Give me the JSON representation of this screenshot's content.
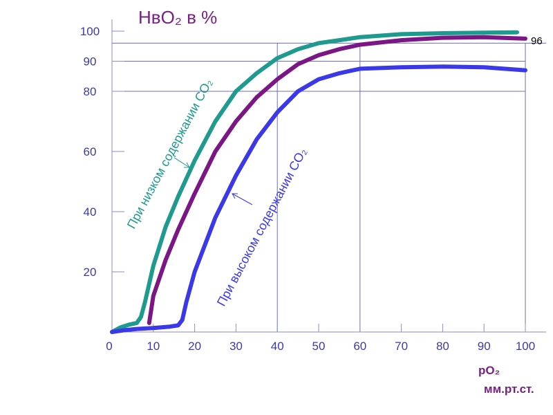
{
  "chart_data": {
    "type": "line",
    "title": "HвO₂ в %",
    "xlabel": "pO₂",
    "xunit": "мм.рт.ст.",
    "x_ticks": [
      0,
      10,
      20,
      30,
      40,
      50,
      60,
      70,
      80,
      90,
      100
    ],
    "y_ticks": [
      20,
      40,
      60,
      80,
      90,
      100
    ],
    "xlim": [
      0,
      100
    ],
    "ylim": [
      0,
      100
    ],
    "reference_label": "96",
    "grid_v": [
      40,
      60,
      100
    ],
    "grid_h": [
      80,
      90,
      96
    ],
    "series": [
      {
        "name": "При низком содержании CO₂",
        "color": "#1e9a8e",
        "x": [
          0,
          2,
          4,
          6,
          7,
          8,
          10,
          13,
          16,
          20,
          25,
          30,
          35,
          40,
          45,
          50,
          55,
          60,
          70,
          80,
          90,
          98
        ],
        "y": [
          0,
          1.5,
          2.4,
          3,
          5,
          10,
          22,
          35,
          45,
          57,
          70,
          80,
          86,
          91,
          94,
          96,
          97,
          98,
          99,
          99.3,
          99.5,
          99.6
        ]
      },
      {
        "name": "",
        "color": "#7b1685",
        "x": [
          9,
          10,
          13,
          16,
          20,
          25,
          30,
          35,
          40,
          45,
          50,
          55,
          60,
          70,
          80,
          90,
          100
        ],
        "y": [
          3,
          12,
          24,
          34,
          46,
          60,
          70,
          78,
          84,
          89,
          92,
          94,
          95.5,
          97,
          97.8,
          98,
          97.5
        ]
      },
      {
        "name": "При высоком содержании CO₂",
        "color": "#3b38e8",
        "x": [
          0,
          3,
          6,
          10,
          14,
          16,
          17,
          18,
          20,
          25,
          30,
          35,
          40,
          45,
          50,
          55,
          60,
          70,
          80,
          90,
          100
        ],
        "y": [
          0,
          0.6,
          1,
          1.3,
          1.8,
          2.2,
          4,
          10,
          20,
          38,
          52,
          64,
          73,
          80,
          84,
          86,
          87.5,
          88,
          88.2,
          88,
          87
        ]
      }
    ],
    "annotations": {
      "low": "При низком содержании CO₂",
      "high": "При высоком содержании CO₂"
    }
  }
}
